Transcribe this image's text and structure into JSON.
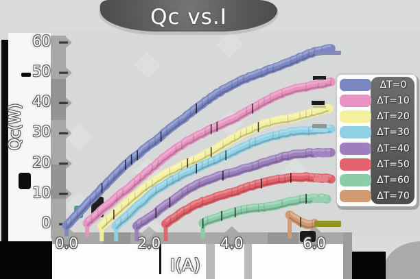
{
  "title": "Qc vs.I",
  "axes": {
    "xlabel": "I(A)",
    "ylabel": "Qc(W)",
    "x_tick_labels": [
      "0.0",
      "2.0",
      "4.0",
      "6.0"
    ],
    "y_tick_labels": [
      "0",
      "10",
      "20",
      "30",
      "40",
      "50",
      "60"
    ]
  },
  "chart_data": {
    "type": "line",
    "title": "Qc vs.I",
    "xlabel": "I(A)",
    "ylabel": "Qc(W)",
    "xlim": [
      -0.3,
      6.9
    ],
    "ylim": [
      -3,
      63
    ],
    "x_ticks": [
      0,
      2,
      4,
      6
    ],
    "y_ticks": [
      0,
      10,
      20,
      30,
      40,
      50,
      60
    ],
    "grid": false,
    "legend_position": "center right",
    "style": "xkcd-sketch",
    "series": [
      {
        "name": "ΔT=0",
        "color": "#7b87c3",
        "x": [
          0,
          0.5,
          1,
          1.5,
          2,
          2.5,
          3,
          3.5,
          4,
          4.5,
          5,
          5.5,
          6,
          6.4
        ],
        "y": [
          0,
          7,
          13.5,
          20,
          26,
          32,
          37,
          41.5,
          45.5,
          49,
          52,
          54.5,
          56.5,
          57.5
        ]
      },
      {
        "name": "ΔT=10",
        "color": "#e792c0",
        "x": [
          0.5,
          1,
          1.5,
          2,
          2.5,
          3,
          3.5,
          4,
          4.5,
          5,
          5.5,
          6,
          6.4
        ],
        "y": [
          0,
          6.5,
          12.5,
          18,
          23,
          27.5,
          31.5,
          35,
          38.5,
          41.5,
          44,
          46,
          47.5
        ]
      },
      {
        "name": "ΔT=20",
        "color": "#f5f0a0",
        "x": [
          0.85,
          1.5,
          2,
          2.5,
          3,
          3.5,
          4,
          4.5,
          5,
          5.5,
          6,
          6.35
        ],
        "y": [
          0,
          7.5,
          12.5,
          17,
          21,
          24.5,
          28,
          31,
          33.5,
          35.5,
          37.5,
          38.5
        ]
      },
      {
        "name": "ΔT=30",
        "color": "#90d1e5",
        "x": [
          1.2,
          2,
          2.5,
          3,
          3.5,
          4,
          4.5,
          5,
          5.5,
          6,
          6.4
        ],
        "y": [
          0,
          9,
          13.5,
          17.5,
          21,
          24,
          26.5,
          28.5,
          30.5,
          31.5,
          32
        ]
      },
      {
        "name": "ΔT=40",
        "color": "#9c7fbc",
        "x": [
          1.7,
          2.5,
          3,
          3.5,
          4,
          4.5,
          5,
          5.5,
          6,
          6.4
        ],
        "y": [
          0,
          7,
          11.5,
          15,
          17.5,
          19.5,
          21,
          22.5,
          23.5,
          24
        ]
      },
      {
        "name": "ΔT=50",
        "color": "#e4626b",
        "x": [
          2.4,
          3,
          3.5,
          4,
          4.5,
          5,
          5.5,
          6,
          6.4
        ],
        "y": [
          0,
          5,
          8.5,
          11,
          13,
          14,
          15,
          15.5,
          15.5
        ]
      },
      {
        "name": "ΔT=60",
        "color": "#8bcda9",
        "x": [
          3.3,
          4,
          4.5,
          5,
          5.5,
          6,
          6.3
        ],
        "y": [
          0,
          3.5,
          5.5,
          6.5,
          7.5,
          8,
          8
        ]
      },
      {
        "name": "ΔT=70",
        "color": "#d09b73",
        "x": [
          5.4,
          5.6,
          5.8,
          6.0
        ],
        "y": [
          3,
          1.5,
          0.3,
          0.6
        ]
      }
    ]
  }
}
